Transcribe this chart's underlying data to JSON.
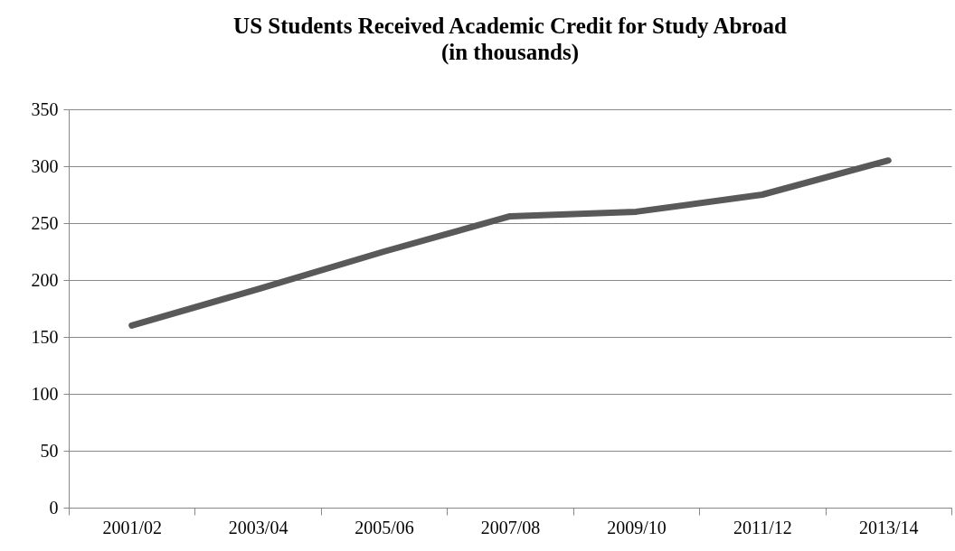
{
  "chart_data": {
    "type": "line",
    "title": "US Students Received Academic Credit for Study Abroad",
    "subtitle": "(in thousands)",
    "categories": [
      "2001/02",
      "2003/04",
      "2005/06",
      "2007/08",
      "2009/10",
      "2011/12",
      "2013/14"
    ],
    "series": [
      {
        "color": "#595959",
        "values": [
          160,
          192,
          225,
          256,
          260,
          275,
          305
        ]
      }
    ],
    "ylim": [
      0,
      350
    ],
    "yticks": [
      0,
      50,
      100,
      150,
      200,
      250,
      300,
      350
    ],
    "grid": "y",
    "legend": false,
    "marker": "none",
    "line_style": "solid"
  }
}
